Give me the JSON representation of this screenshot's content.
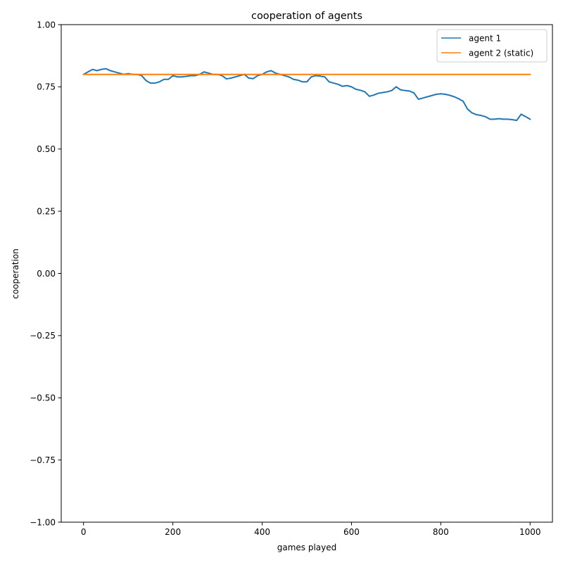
{
  "chart_data": {
    "type": "line",
    "title": "cooperation of agents",
    "xlabel": "games played",
    "ylabel": "cooperation",
    "xlim": [
      -50,
      1050
    ],
    "ylim": [
      -1.0,
      1.0
    ],
    "x_ticks": [
      0,
      200,
      400,
      600,
      800,
      1000
    ],
    "y_ticks": [
      -1.0,
      -0.75,
      -0.5,
      -0.25,
      0.0,
      0.25,
      0.5,
      0.75,
      1.0
    ],
    "x_tick_labels": [
      "0",
      "200",
      "400",
      "600",
      "800",
      "1000"
    ],
    "y_tick_labels": [
      "−1.00",
      "−0.75",
      "−0.50",
      "−0.25",
      "0.00",
      "0.25",
      "0.50",
      "0.75",
      "1.00"
    ],
    "grid": false,
    "legend_position": "upper right",
    "series": [
      {
        "name": "agent 1",
        "color": "#1f77b4",
        "x": [
          0,
          10,
          20,
          30,
          40,
          50,
          60,
          70,
          80,
          90,
          100,
          110,
          120,
          130,
          140,
          150,
          160,
          170,
          180,
          190,
          200,
          210,
          220,
          230,
          240,
          250,
          260,
          270,
          280,
          290,
          300,
          310,
          320,
          330,
          340,
          350,
          360,
          370,
          380,
          390,
          400,
          410,
          420,
          430,
          440,
          450,
          460,
          470,
          480,
          490,
          500,
          510,
          520,
          530,
          540,
          550,
          560,
          570,
          580,
          590,
          600,
          610,
          620,
          630,
          640,
          650,
          660,
          670,
          680,
          690,
          700,
          710,
          720,
          730,
          740,
          750,
          760,
          770,
          780,
          790,
          800,
          810,
          820,
          830,
          840,
          850,
          860,
          870,
          880,
          890,
          900,
          910,
          920,
          930,
          940,
          950,
          960,
          970,
          980,
          990,
          1000
        ],
        "y": [
          0.8,
          0.81,
          0.82,
          0.815,
          0.82,
          0.823,
          0.815,
          0.81,
          0.805,
          0.8,
          0.803,
          0.8,
          0.8,
          0.795,
          0.775,
          0.765,
          0.765,
          0.77,
          0.78,
          0.78,
          0.795,
          0.79,
          0.79,
          0.792,
          0.795,
          0.795,
          0.8,
          0.81,
          0.805,
          0.8,
          0.8,
          0.795,
          0.782,
          0.785,
          0.79,
          0.795,
          0.8,
          0.785,
          0.783,
          0.795,
          0.8,
          0.81,
          0.815,
          0.805,
          0.8,
          0.795,
          0.79,
          0.78,
          0.777,
          0.77,
          0.77,
          0.79,
          0.795,
          0.793,
          0.79,
          0.77,
          0.765,
          0.76,
          0.752,
          0.755,
          0.75,
          0.74,
          0.736,
          0.73,
          0.712,
          0.717,
          0.724,
          0.727,
          0.73,
          0.735,
          0.75,
          0.738,
          0.735,
          0.733,
          0.725,
          0.7,
          0.705,
          0.71,
          0.715,
          0.72,
          0.722,
          0.72,
          0.716,
          0.71,
          0.702,
          0.692,
          0.66,
          0.645,
          0.638,
          0.635,
          0.63,
          0.62,
          0.62,
          0.622,
          0.62,
          0.62,
          0.618,
          0.615,
          0.64,
          0.63,
          0.62
        ]
      },
      {
        "name": "agent 2 (static)",
        "color": "#ff7f0e",
        "x": [
          0,
          1000
        ],
        "y": [
          0.8,
          0.8
        ]
      }
    ]
  }
}
